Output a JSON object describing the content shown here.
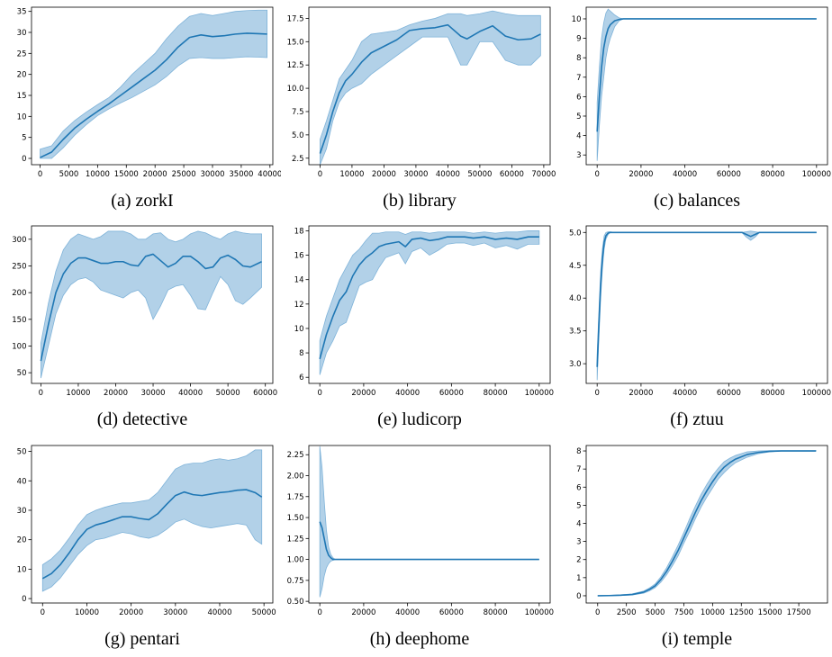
{
  "colors": {
    "line": "#1f77b4",
    "band": "#7fb3d9",
    "axis": "#000000"
  },
  "chart_data": [
    {
      "type": "line",
      "caption": "(a) zorkI",
      "xlim": [
        -1500,
        40500
      ],
      "ylim": [
        -1.5,
        36
      ],
      "xticks": [
        0,
        5000,
        10000,
        15000,
        20000,
        25000,
        30000,
        35000,
        40000
      ],
      "yticks": [
        0,
        5,
        10,
        15,
        20,
        25,
        30,
        35
      ],
      "x": [
        0,
        2000,
        4000,
        6000,
        8000,
        10000,
        12000,
        14000,
        16000,
        18000,
        20000,
        22000,
        24000,
        26000,
        28000,
        30000,
        32000,
        34000,
        36000,
        38000,
        39500
      ],
      "mean": [
        0.2,
        1.5,
        4.5,
        7.2,
        9.3,
        11.2,
        13.0,
        15.0,
        17.0,
        19.0,
        21.0,
        23.5,
        26.5,
        28.8,
        29.4,
        29.0,
        29.2,
        29.6,
        29.8,
        29.7,
        29.6
      ],
      "lower": [
        0,
        0,
        2.5,
        5.5,
        8.0,
        10.2,
        11.8,
        13.2,
        14.5,
        16.0,
        17.5,
        19.5,
        22.0,
        23.8,
        24.0,
        23.8,
        23.8,
        24.0,
        24.2,
        24.1,
        24.0
      ],
      "upper": [
        2.2,
        3.0,
        6.5,
        9.0,
        11.0,
        12.8,
        14.5,
        17.0,
        20.0,
        22.5,
        25.0,
        28.5,
        31.5,
        33.8,
        34.5,
        34.0,
        34.5,
        35.0,
        35.2,
        35.3,
        35.3
      ]
    },
    {
      "type": "line",
      "caption": "(b) library",
      "xlim": [
        -3500,
        72000
      ],
      "ylim": [
        1.8,
        18.7
      ],
      "xticks": [
        0,
        10000,
        20000,
        30000,
        40000,
        50000,
        60000,
        70000
      ],
      "yticks": [
        2.5,
        5.0,
        7.5,
        10.0,
        12.5,
        15.0,
        17.5
      ],
      "x": [
        0,
        2000,
        4000,
        6000,
        8000,
        10000,
        13000,
        16000,
        20000,
        24000,
        28000,
        32000,
        36000,
        40000,
        44000,
        46000,
        50000,
        54000,
        58000,
        62000,
        66000,
        69000
      ],
      "mean": [
        3.0,
        5.0,
        7.5,
        9.5,
        10.8,
        11.5,
        12.8,
        13.8,
        14.5,
        15.2,
        16.2,
        16.4,
        16.5,
        16.8,
        15.6,
        15.3,
        16.1,
        16.7,
        15.6,
        15.2,
        15.3,
        15.8
      ],
      "lower": [
        1.8,
        3.5,
        6.5,
        8.5,
        9.5,
        10.0,
        10.5,
        11.5,
        12.5,
        13.5,
        14.5,
        15.5,
        15.5,
        15.5,
        12.5,
        12.5,
        15.0,
        15.0,
        13.0,
        12.5,
        12.5,
        13.5
      ],
      "upper": [
        4.5,
        6.5,
        8.7,
        11.0,
        12.0,
        13.0,
        15.0,
        15.8,
        16.0,
        16.2,
        16.8,
        17.2,
        17.5,
        18.0,
        18.0,
        17.8,
        18.0,
        18.3,
        18.0,
        17.8,
        17.8,
        17.8
      ]
    },
    {
      "type": "line",
      "caption": "(c) balances",
      "xlim": [
        -5000,
        105000
      ],
      "ylim": [
        2.5,
        10.6
      ],
      "xticks": [
        0,
        20000,
        40000,
        60000,
        80000,
        100000
      ],
      "yticks": [
        3,
        4,
        5,
        6,
        7,
        8,
        9,
        10
      ],
      "x": [
        0,
        1000,
        2000,
        3000,
        4000,
        5000,
        6000,
        8000,
        10000,
        12000,
        14000,
        20000,
        40000,
        60000,
        80000,
        100000
      ],
      "mean": [
        4.2,
        6.0,
        7.5,
        8.5,
        9.1,
        9.5,
        9.7,
        9.9,
        9.97,
        10.0,
        10.0,
        10.0,
        10.0,
        10.0,
        10.0,
        10.0
      ],
      "lower": [
        2.7,
        4.5,
        6.0,
        7.0,
        8.0,
        8.6,
        9.0,
        9.6,
        9.9,
        10.0,
        10.0,
        10.0,
        10.0,
        10.0,
        10.0,
        10.0
      ],
      "upper": [
        5.7,
        7.5,
        9.0,
        9.8,
        10.3,
        10.5,
        10.4,
        10.2,
        10.05,
        10.0,
        10.0,
        10.0,
        10.0,
        10.0,
        10.0,
        10.0
      ]
    },
    {
      "type": "line",
      "caption": "(d) detective",
      "xlim": [
        -2500,
        62000
      ],
      "ylim": [
        30,
        325
      ],
      "xticks": [
        0,
        10000,
        20000,
        30000,
        40000,
        50000,
        60000
      ],
      "yticks": [
        50,
        100,
        150,
        200,
        250,
        300
      ],
      "x": [
        0,
        2000,
        4000,
        6000,
        8000,
        10000,
        12000,
        14000,
        16000,
        18000,
        20000,
        22000,
        24000,
        26000,
        28000,
        30000,
        32000,
        34000,
        36000,
        38000,
        40000,
        42000,
        44000,
        46000,
        48000,
        50000,
        52000,
        54000,
        56000,
        59000
      ],
      "mean": [
        72,
        140,
        200,
        235,
        255,
        265,
        265,
        260,
        255,
        255,
        258,
        258,
        252,
        250,
        268,
        272,
        260,
        248,
        255,
        268,
        268,
        258,
        245,
        248,
        265,
        270,
        262,
        250,
        248,
        258
      ],
      "lower": [
        40,
        100,
        160,
        195,
        215,
        225,
        228,
        220,
        205,
        200,
        195,
        190,
        200,
        205,
        190,
        150,
        175,
        205,
        212,
        215,
        195,
        170,
        168,
        200,
        230,
        215,
        185,
        178,
        190,
        210
      ],
      "upper": [
        105,
        180,
        240,
        280,
        300,
        310,
        305,
        300,
        305,
        315,
        315,
        315,
        310,
        300,
        300,
        310,
        312,
        300,
        295,
        300,
        310,
        315,
        312,
        305,
        300,
        310,
        315,
        312,
        310,
        310
      ]
    },
    {
      "type": "line",
      "caption": "(e) ludicorp",
      "xlim": [
        -5000,
        105000
      ],
      "ylim": [
        5.5,
        18.4
      ],
      "xticks": [
        0,
        20000,
        40000,
        60000,
        80000,
        100000
      ],
      "yticks": [
        6,
        8,
        10,
        12,
        14,
        16,
        18
      ],
      "x": [
        0,
        3000,
        6000,
        9000,
        12000,
        15000,
        18000,
        21000,
        24000,
        27000,
        30000,
        33000,
        36000,
        39000,
        42000,
        46000,
        50000,
        54000,
        58000,
        62000,
        66000,
        70000,
        75000,
        80000,
        85000,
        90000,
        95000,
        100000
      ],
      "mean": [
        7.5,
        9.5,
        11.0,
        12.3,
        13.0,
        14.3,
        15.2,
        15.8,
        16.2,
        16.7,
        16.9,
        17.0,
        17.1,
        16.7,
        17.3,
        17.4,
        17.2,
        17.3,
        17.5,
        17.5,
        17.5,
        17.4,
        17.5,
        17.3,
        17.4,
        17.3,
        17.5,
        17.5
      ],
      "lower": [
        6.2,
        8.0,
        9.0,
        10.2,
        10.5,
        12.0,
        13.5,
        13.8,
        14.0,
        15.0,
        15.8,
        16.0,
        16.2,
        15.3,
        16.3,
        16.6,
        16.0,
        16.4,
        16.9,
        17.0,
        17.0,
        16.8,
        17.0,
        16.6,
        16.8,
        16.5,
        16.9,
        16.9
      ],
      "upper": [
        9.0,
        11.0,
        12.5,
        14.0,
        15.0,
        16.0,
        16.5,
        17.2,
        17.8,
        17.8,
        17.9,
        17.9,
        17.9,
        17.7,
        17.9,
        17.9,
        17.8,
        17.9,
        17.9,
        17.9,
        17.9,
        17.8,
        17.9,
        17.8,
        17.9,
        17.9,
        18.0,
        18.0
      ]
    },
    {
      "type": "line",
      "caption": "(f) ztuu",
      "xlim": [
        -5000,
        105000
      ],
      "ylim": [
        2.7,
        5.1
      ],
      "xticks": [
        0,
        20000,
        40000,
        60000,
        80000,
        100000
      ],
      "yticks": [
        3.0,
        3.5,
        4.0,
        4.5,
        5.0
      ],
      "x": [
        0,
        800,
        1600,
        2400,
        3200,
        4000,
        5000,
        6000,
        8000,
        20000,
        40000,
        60000,
        66000,
        68000,
        70000,
        72000,
        74000,
        80000,
        100000
      ],
      "mean": [
        2.95,
        3.6,
        4.2,
        4.6,
        4.85,
        4.95,
        4.99,
        5.0,
        5.0,
        5.0,
        5.0,
        5.0,
        5.0,
        4.97,
        4.94,
        4.97,
        5.0,
        5.0,
        5.0
      ],
      "lower": [
        2.75,
        3.4,
        4.0,
        4.45,
        4.75,
        4.9,
        4.97,
        5.0,
        5.0,
        5.0,
        5.0,
        5.0,
        5.0,
        4.93,
        4.88,
        4.93,
        5.0,
        5.0,
        5.0
      ],
      "upper": [
        3.15,
        3.8,
        4.4,
        4.75,
        4.95,
        5.0,
        5.01,
        5.01,
        5.0,
        5.0,
        5.0,
        5.0,
        5.0,
        5.01,
        5.02,
        5.01,
        5.0,
        5.0,
        5.0
      ]
    },
    {
      "type": "line",
      "caption": "(g) pentari",
      "xlim": [
        -2500,
        52000
      ],
      "ylim": [
        -1.5,
        52
      ],
      "xticks": [
        0,
        10000,
        20000,
        30000,
        40000,
        50000
      ],
      "yticks": [
        0,
        10,
        20,
        30,
        40,
        50
      ],
      "x": [
        0,
        2000,
        4000,
        6000,
        8000,
        10000,
        12000,
        14000,
        16000,
        18000,
        20000,
        22000,
        24000,
        26000,
        28000,
        30000,
        32000,
        34000,
        36000,
        38000,
        40000,
        42000,
        44000,
        46000,
        48000,
        49500
      ],
      "mean": [
        6.8,
        8.5,
        11.5,
        15.5,
        20.0,
        23.5,
        25.0,
        25.8,
        26.8,
        27.8,
        27.8,
        27.2,
        26.8,
        28.8,
        32.0,
        35.0,
        36.2,
        35.3,
        35.0,
        35.5,
        36.0,
        36.3,
        36.8,
        37.0,
        36.0,
        34.5
      ],
      "lower": [
        2.5,
        4.0,
        7.0,
        11.0,
        15.0,
        18.0,
        20.0,
        20.5,
        21.5,
        22.5,
        22.0,
        21.0,
        20.5,
        21.5,
        23.5,
        26.0,
        27.0,
        25.5,
        24.5,
        24.0,
        24.5,
        25.0,
        25.5,
        25.0,
        20.0,
        18.5
      ],
      "upper": [
        11.5,
        13.5,
        16.5,
        20.5,
        25.0,
        28.5,
        30.0,
        31.0,
        31.8,
        32.5,
        32.5,
        33.0,
        33.5,
        36.0,
        40.0,
        44.0,
        45.5,
        46.0,
        46.0,
        47.0,
        47.5,
        47.0,
        47.5,
        48.5,
        50.5,
        50.5
      ]
    },
    {
      "type": "line",
      "caption": "(h) deephome",
      "xlim": [
        -5000,
        105000
      ],
      "ylim": [
        0.48,
        2.36
      ],
      "xticks": [
        0,
        20000,
        40000,
        60000,
        80000,
        100000
      ],
      "yticks": [
        0.5,
        0.75,
        1.0,
        1.25,
        1.5,
        1.75,
        2.0,
        2.25
      ],
      "x": [
        0,
        1000,
        2000,
        3000,
        4000,
        5000,
        6000,
        7000,
        8000,
        10000,
        20000,
        40000,
        60000,
        80000,
        100000
      ],
      "mean": [
        1.45,
        1.38,
        1.25,
        1.12,
        1.05,
        1.02,
        1.0,
        1.0,
        1.0,
        1.0,
        1.0,
        1.0,
        1.0,
        1.0,
        1.0
      ],
      "lower": [
        0.55,
        0.65,
        0.8,
        0.9,
        0.95,
        0.98,
        0.99,
        1.0,
        1.0,
        1.0,
        1.0,
        1.0,
        1.0,
        1.0,
        1.0
      ],
      "upper": [
        2.35,
        2.1,
        1.7,
        1.35,
        1.15,
        1.06,
        1.02,
        1.0,
        1.0,
        1.0,
        1.0,
        1.0,
        1.0,
        1.0,
        1.0
      ]
    },
    {
      "type": "line",
      "caption": "(i) temple",
      "xlim": [
        -1000,
        20000
      ],
      "ylim": [
        -0.4,
        8.3
      ],
      "xticks": [
        0,
        2500,
        5000,
        7500,
        10000,
        12500,
        15000,
        17500
      ],
      "yticks": [
        0,
        1,
        2,
        3,
        4,
        5,
        6,
        7,
        8
      ],
      "x": [
        0,
        1000,
        2000,
        3000,
        4000,
        4500,
        5000,
        5500,
        6000,
        6500,
        7000,
        7500,
        8000,
        8500,
        9000,
        9500,
        10000,
        10500,
        11000,
        11500,
        12000,
        13000,
        14000,
        15000,
        16000,
        17000,
        18000,
        19000
      ],
      "mean": [
        0,
        0.01,
        0.03,
        0.07,
        0.2,
        0.35,
        0.55,
        0.9,
        1.35,
        1.9,
        2.5,
        3.2,
        3.9,
        4.6,
        5.25,
        5.8,
        6.3,
        6.75,
        7.1,
        7.35,
        7.55,
        7.8,
        7.92,
        7.98,
        8.0,
        8.0,
        8.0,
        8.0
      ],
      "lower": [
        0,
        0,
        0.01,
        0.04,
        0.14,
        0.27,
        0.45,
        0.75,
        1.15,
        1.65,
        2.2,
        2.9,
        3.55,
        4.25,
        4.9,
        5.45,
        5.95,
        6.45,
        6.8,
        7.1,
        7.35,
        7.65,
        7.85,
        7.95,
        8.0,
        8.0,
        8.0,
        8.0
      ],
      "upper": [
        0,
        0.02,
        0.05,
        0.1,
        0.26,
        0.43,
        0.65,
        1.05,
        1.55,
        2.15,
        2.8,
        3.5,
        4.25,
        4.95,
        5.6,
        6.15,
        6.65,
        7.05,
        7.4,
        7.6,
        7.75,
        7.95,
        8.0,
        8.02,
        8.02,
        8.02,
        8.02,
        8.02
      ]
    }
  ]
}
